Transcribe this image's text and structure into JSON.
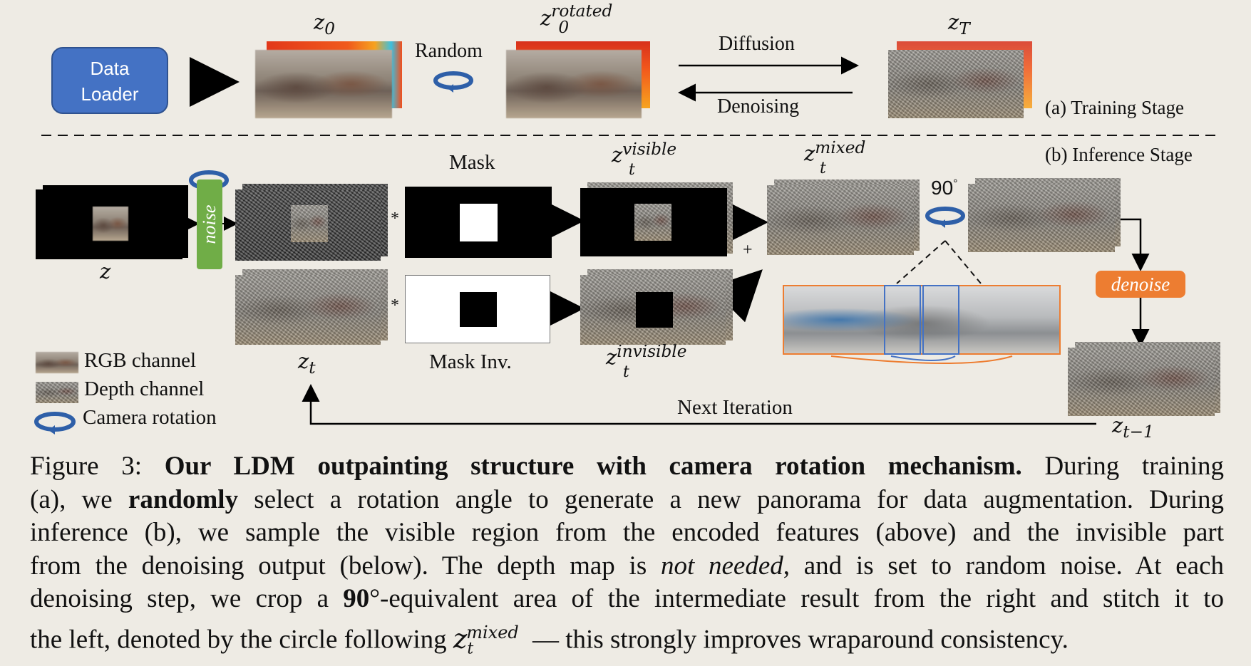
{
  "training": {
    "data_loader": [
      "Data",
      "Loader"
    ],
    "z0_label": "z",
    "z0_sub": "0",
    "random_label": "Random",
    "z0rot_label": "z",
    "z0rot_sub": "0",
    "z0rot_sup": "rotated",
    "diffusion_label": "Diffusion",
    "denoising_label": "Denoising",
    "zT_label": "z",
    "zT_sub": "T",
    "stage_label": "(a) Training Stage"
  },
  "inference": {
    "stage_label": "(b) Inference Stage",
    "z_label": "z",
    "noise_label": "noise",
    "zt_label": "z",
    "zt_sub": "t",
    "mask_label": "Mask",
    "mask_inv_label": "Mask Inv.",
    "star": "*",
    "zvis_label": "z",
    "zvis_sub": "t",
    "zvis_sup": "visible",
    "zinv_label": "z",
    "zinv_sub": "t",
    "zinv_sup": "invisible",
    "plus": "+",
    "zmix_label": "z",
    "zmix_sub": "t",
    "zmix_sup": "mixed",
    "rot_angle": "90",
    "rot_deg": "°",
    "denoise_label": "denoise",
    "ztm1_label": "z",
    "ztm1_sub": "t−1",
    "next_iter_label": "Next Iteration"
  },
  "legend": {
    "rgb": "RGB channel",
    "depth": "Depth channel",
    "camera": "Camera rotation"
  },
  "caption": {
    "l1_a": "Figure 3: ",
    "l1_b": "Our LDM outpainting structure with camera rotation mechanism.",
    "l1_c": " During training",
    "l2_a": "(a), we ",
    "l2_b": "randomly",
    "l2_c": " select a rotation angle to generate a new panorama for data augmentation. During",
    "l3": "inference (b), we sample the visible region from the encoded features (above) and the invisible part",
    "l4_a": "from the denoising output (below). The depth map is ",
    "l4_b": "not needed",
    "l4_c": ", and is set to random noise. At each",
    "l5_a": "denoising step, we crop a ",
    "l5_b": "90",
    "l5_c": "°-equivalent area of the intermediate result from the right and stitch it to",
    "l6_a": "the left, denoted by the circle following ",
    "l6_z": "z",
    "l6_sub": "t",
    "l6_sup": "mixed",
    "l6_c": " — this strongly improves wraparound consistency."
  },
  "colors": {
    "data_loader": "#4472c4",
    "noise_bar": "#70ad47",
    "denoise_tag": "#ed7d31",
    "rotation_icon": "#2e5fa8"
  }
}
